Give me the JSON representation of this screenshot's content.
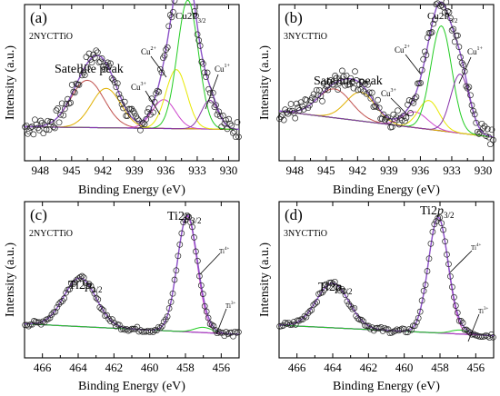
{
  "figure": {
    "panels": [
      {
        "label": "(a)",
        "sample": "2NYCTTiO",
        "xlabel": "Binding Energy (eV)",
        "ylabel": "Intensity (a.u.)",
        "xticks": [
          "948",
          "945",
          "942",
          "939",
          "936",
          "933",
          "930"
        ],
        "annotations": [
          {
            "text": "Satellite peak",
            "sup": "",
            "sub": ""
          },
          {
            "text": "Cu",
            "sup": "2+",
            "sub": ""
          },
          {
            "text": "Cu2P",
            "sup": "",
            "sub": "3/2"
          },
          {
            "text": "Cu",
            "sup": "3+",
            "sub": ""
          },
          {
            "text": "Cu",
            "sup": "1+",
            "sub": ""
          }
        ]
      },
      {
        "label": "(b)",
        "sample": "3NYCTTiO",
        "xlabel": "Binding Energy (eV)",
        "ylabel": "Intensity (a.u.)",
        "xticks": [
          "948",
          "945",
          "942",
          "939",
          "936",
          "933",
          "930"
        ],
        "annotations": [
          {
            "text": "Satellite peak",
            "sup": "",
            "sub": ""
          },
          {
            "text": "Cu",
            "sup": "2+",
            "sub": ""
          },
          {
            "text": "Cu2P",
            "sup": "",
            "sub": "3/2"
          },
          {
            "text": "Cu",
            "sup": "3+",
            "sub": ""
          },
          {
            "text": "Cu",
            "sup": "1+",
            "sub": ""
          }
        ]
      },
      {
        "label": "(c)",
        "sample": "2NYCTTiO",
        "xlabel": "Binding Energy (eV)",
        "ylabel": "Intensity (a.u.)",
        "xticks": [
          "466",
          "464",
          "462",
          "460",
          "458",
          "456"
        ],
        "annotations": [
          {
            "text": "Ti2",
            "italic": "p",
            "sub": "1/2"
          },
          {
            "text": "Ti2",
            "italic": "p",
            "sub": "3/2"
          },
          {
            "text": "Ti",
            "sup": "4+",
            "sub": ""
          },
          {
            "text": "Ti",
            "sup": "3+",
            "sub": ""
          }
        ]
      },
      {
        "label": "(d)",
        "sample": "3NYCTTiO",
        "xlabel": "Binding Energy (eV)",
        "ylabel": "Intensity (a.u.)",
        "xticks": [
          "466",
          "464",
          "462",
          "460",
          "458",
          "456"
        ],
        "annotations": [
          {
            "text": "Ti2",
            "italic": "p",
            "sub": "1/2"
          },
          {
            "text": "Ti2",
            "italic": "p",
            "sub": "3/2"
          },
          {
            "text": "Ti",
            "sup": "4+",
            "sub": ""
          },
          {
            "text": "Ti",
            "sup": "3+",
            "sub": ""
          }
        ]
      }
    ]
  },
  "chart_data": [
    {
      "type": "scatter",
      "panel": "(a)",
      "xlim": [
        949.5,
        929
      ],
      "ylim": [
        0,
        1
      ],
      "x_reversed": true,
      "series": [],
      "components": [
        {
          "center": 943.5,
          "width": 1.6,
          "height": 0.36,
          "color": "#c0504d"
        },
        {
          "center": 941.7,
          "width": 1.4,
          "height": 0.3,
          "color": "#e0b000"
        },
        {
          "center": 936.2,
          "width": 1.1,
          "height": 0.22,
          "color": "#cc44cc"
        },
        {
          "center": 935.0,
          "width": 1.0,
          "height": 0.45,
          "color": "#e8e800"
        },
        {
          "center": 933.9,
          "width": 1.0,
          "height": 0.98,
          "color": "#22cc22"
        },
        {
          "center": 931.8,
          "width": 0.8,
          "height": 0.22,
          "color": "#8833aa"
        }
      ],
      "background": {
        "start": 0.14,
        "end": 0.12,
        "color": "#1a1a8c"
      },
      "envelope_color": "#8c52c8"
    },
    {
      "type": "scatter",
      "panel": "(b)",
      "xlim": [
        949.5,
        929
      ],
      "ylim": [
        0,
        1
      ],
      "x_reversed": true,
      "series": [],
      "components": [
        {
          "center": 944.2,
          "width": 1.6,
          "height": 0.22,
          "color": "#c0504d"
        },
        {
          "center": 941.7,
          "width": 1.4,
          "height": 0.22,
          "color": "#e0b000"
        },
        {
          "center": 936.5,
          "width": 1.2,
          "height": 0.12,
          "color": "#cc44cc"
        },
        {
          "center": 935.2,
          "width": 1.0,
          "height": 0.22,
          "color": "#e8e800"
        },
        {
          "center": 934.0,
          "width": 1.0,
          "height": 0.8,
          "color": "#22cc22"
        },
        {
          "center": 932.2,
          "width": 0.9,
          "height": 0.45,
          "color": "#8833aa"
        }
      ],
      "background": {
        "start": 0.26,
        "end": 0.06,
        "color": "#1a1a8c"
      },
      "envelope_color": "#8c52c8"
    },
    {
      "type": "scatter",
      "panel": "(c)",
      "xlim": [
        467,
        455
      ],
      "ylim": [
        0,
        1
      ],
      "x_reversed": true,
      "series": [],
      "components": [
        {
          "center": 463.9,
          "width": 0.9,
          "height": 0.37,
          "color": "#cc44cc"
        },
        {
          "center": 457.9,
          "width": 0.55,
          "height": 0.88,
          "color": "#cc44cc"
        },
        {
          "center": 457.0,
          "width": 0.5,
          "height": 0.04,
          "color": "#22cc22"
        }
      ],
      "background": {
        "start": 0.14,
        "end": 0.06,
        "color": "#1a1a8c"
      },
      "envelope_color": "#8c52c8"
    },
    {
      "type": "scatter",
      "panel": "(d)",
      "xlim": [
        467,
        455
      ],
      "ylim": [
        0,
        1
      ],
      "x_reversed": true,
      "series": [],
      "components": [
        {
          "center": 464.0,
          "width": 0.9,
          "height": 0.34,
          "color": "#cc44cc"
        },
        {
          "center": 458.1,
          "width": 0.55,
          "height": 0.88,
          "color": "#cc44cc"
        },
        {
          "center": 456.9,
          "width": 0.5,
          "height": 0.03,
          "color": "#22cc22"
        }
      ],
      "background": {
        "start": 0.13,
        "end": 0.05,
        "color": "#1a1a8c"
      },
      "envelope_color": "#8c52c8"
    }
  ]
}
